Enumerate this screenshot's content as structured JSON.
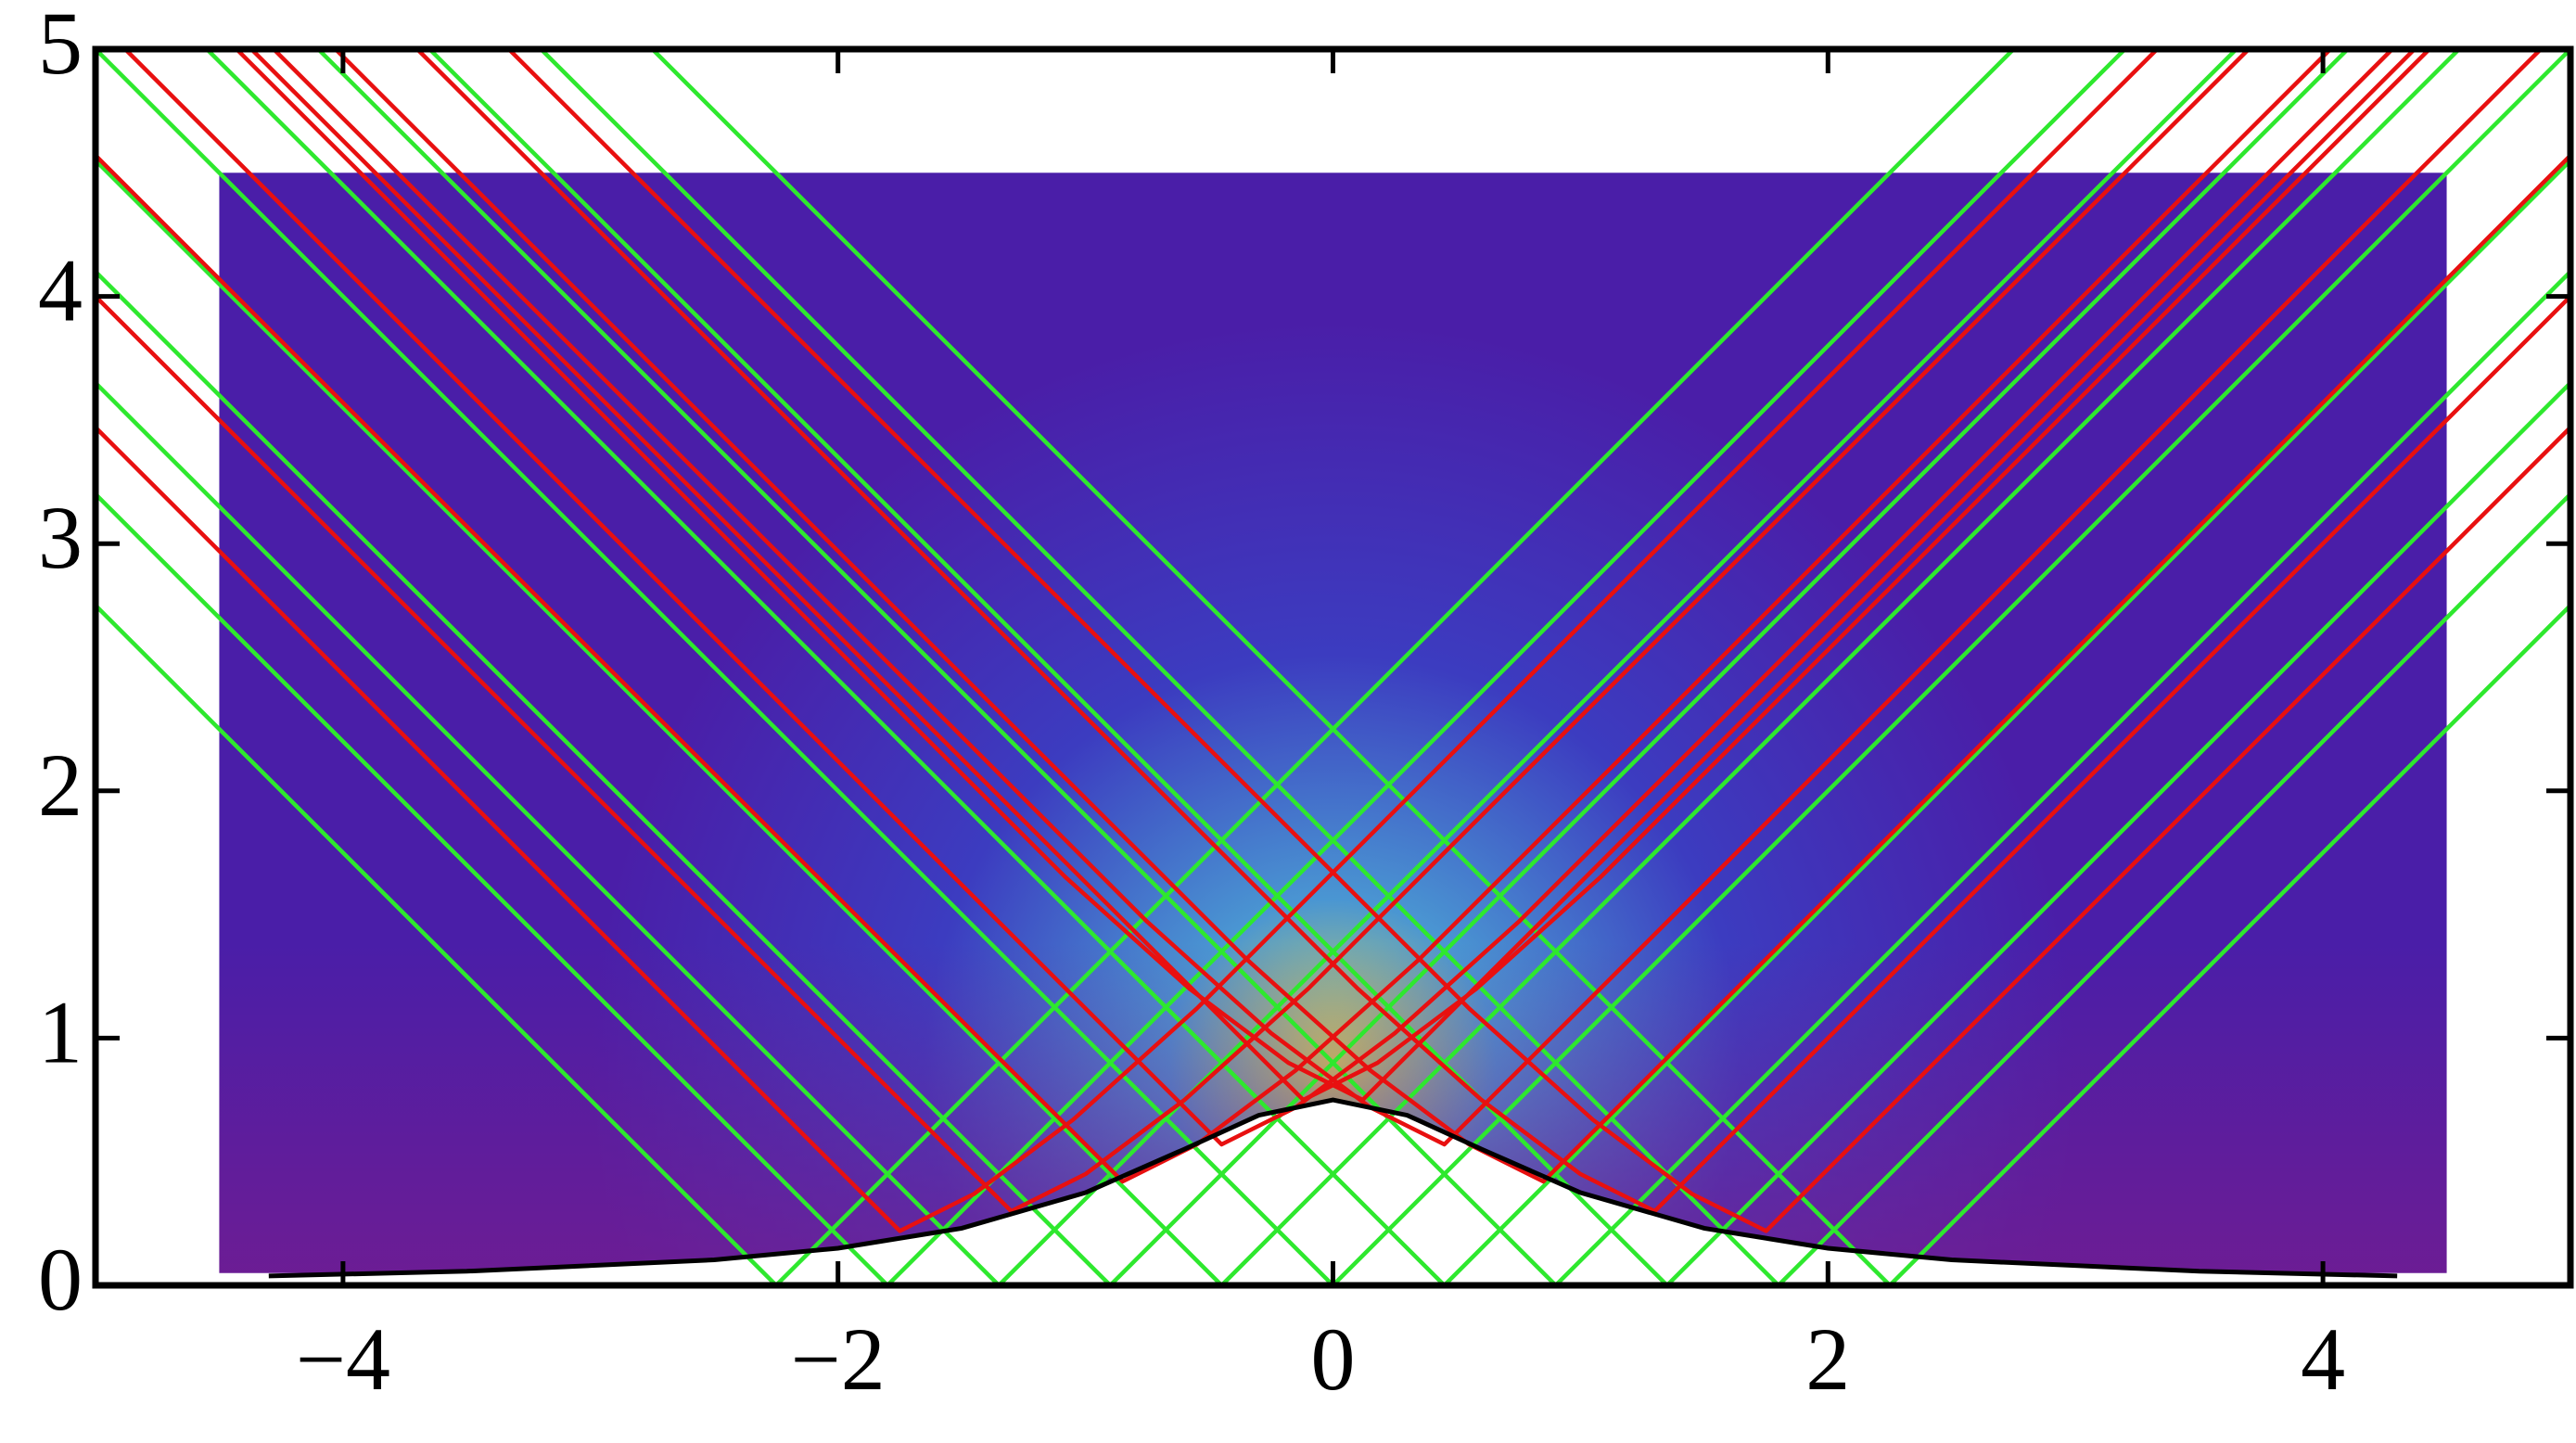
{
  "chart_data": {
    "type": "line",
    "xlim": [
      -5,
      5
    ],
    "ylim": [
      0,
      5
    ],
    "xticks": [
      {
        "value": -4,
        "label": "−4"
      },
      {
        "value": -2,
        "label": "−2"
      },
      0,
      2,
      4
    ],
    "yticks": [
      0,
      1,
      2,
      3,
      4,
      5
    ],
    "density": {
      "xlim": [
        -4.5,
        4.5
      ],
      "ylim": [
        0.05,
        4.5
      ],
      "center": [
        0,
        0.9
      ],
      "colors": [
        "#d6d65a",
        "#4a96d2",
        "#3c3cc0",
        "#4a1ea8",
        "#7a1c8c"
      ]
    },
    "curve": {
      "color": "#000000",
      "x": [
        -4.3,
        -3.5,
        -2.5,
        -2,
        -1.5,
        -1,
        -0.6,
        -0.3,
        0,
        0.3,
        0.6,
        1,
        1.5,
        2,
        2.5,
        3.5,
        4.3
      ],
      "y": [
        0.038,
        0.057,
        0.103,
        0.15,
        0.231,
        0.375,
        0.551,
        0.688,
        0.75,
        0.688,
        0.551,
        0.375,
        0.231,
        0.15,
        0.103,
        0.057,
        0.038
      ]
    },
    "green_rays": {
      "color": "#2ee82e",
      "lines": [
        {
          "x": [
            -2.25,
            2.75
          ],
          "y": [
            0,
            5
          ]
        },
        {
          "x": [
            -1.8,
            3.2
          ],
          "y": [
            0,
            5
          ]
        },
        {
          "x": [
            -1.35,
            3.65
          ],
          "y": [
            0,
            5
          ]
        },
        {
          "x": [
            -0.9,
            4.1
          ],
          "y": [
            0,
            5
          ]
        },
        {
          "x": [
            -0.45,
            4.55
          ],
          "y": [
            0,
            5
          ]
        },
        {
          "x": [
            0,
            5
          ],
          "y": [
            0,
            5
          ]
        },
        {
          "x": [
            0.45,
            5
          ],
          "y": [
            0,
            4.55
          ]
        },
        {
          "x": [
            0.9,
            5
          ],
          "y": [
            0,
            4.1
          ]
        },
        {
          "x": [
            1.35,
            5
          ],
          "y": [
            0,
            3.65
          ]
        },
        {
          "x": [
            1.8,
            5
          ],
          "y": [
            0,
            3.2
          ]
        },
        {
          "x": [
            2.25,
            5
          ],
          "y": [
            0,
            2.75
          ]
        },
        {
          "x": [
            2.25,
            -2.75
          ],
          "y": [
            0,
            5
          ]
        },
        {
          "x": [
            1.8,
            -3.2
          ],
          "y": [
            0,
            5
          ]
        },
        {
          "x": [
            1.35,
            -3.65
          ],
          "y": [
            0,
            5
          ]
        },
        {
          "x": [
            0.9,
            -4.1
          ],
          "y": [
            0,
            5
          ]
        },
        {
          "x": [
            0.45,
            -4.55
          ],
          "y": [
            0,
            5
          ]
        },
        {
          "x": [
            0,
            -5
          ],
          "y": [
            0,
            5
          ]
        },
        {
          "x": [
            -0.45,
            -5
          ],
          "y": [
            0,
            4.55
          ]
        },
        {
          "x": [
            -0.9,
            -5
          ],
          "y": [
            0,
            4.1
          ]
        },
        {
          "x": [
            -1.35,
            -5
          ],
          "y": [
            0,
            3.65
          ]
        },
        {
          "x": [
            -1.8,
            -5
          ],
          "y": [
            0,
            3.2
          ]
        },
        {
          "x": [
            -2.25,
            -5
          ],
          "y": [
            0,
            2.75
          ]
        }
      ]
    },
    "red_rays": {
      "color": "#e81010",
      "lines": [
        {
          "x": [
            -5,
            -1.75,
            -1.45,
            -1.05,
            -0.55,
            3.33
          ],
          "y": [
            3.47,
            0.22,
            0.37,
            0.67,
            1.12,
            5
          ]
        },
        {
          "x": [
            -5,
            -1.3,
            -1.0,
            -0.6,
            -0.1,
            3.7
          ],
          "y": [
            4.0,
            0.3,
            0.45,
            0.75,
            1.2,
            5
          ]
        },
        {
          "x": [
            -5,
            -0.85,
            -0.55,
            -0.15,
            0.35,
            4.03
          ],
          "y": [
            4.57,
            0.42,
            0.57,
            0.87,
            1.32,
            5
          ]
        },
        {
          "x": [
            -4.88,
            -0.45,
            -0.15,
            0.25,
            0.75,
            4.28
          ],
          "y": [
            5,
            0.57,
            0.72,
            1.02,
            1.47,
            5
          ]
        },
        {
          "x": [
            -4.37,
            -0.12,
            0.18,
            0.58,
            1.08,
            4.43
          ],
          "y": [
            5,
            0.75,
            0.9,
            1.2,
            1.65,
            5
          ]
        },
        {
          "x": [
            4.37,
            0.12,
            -0.18,
            -0.58,
            -1.08,
            -4.43
          ],
          "y": [
            5,
            0.75,
            0.9,
            1.2,
            1.65,
            5
          ]
        },
        {
          "x": [
            4.88,
            0.45,
            0.15,
            -0.25,
            -0.75,
            -4.28
          ],
          "y": [
            5,
            0.57,
            0.72,
            1.02,
            1.47,
            5
          ]
        },
        {
          "x": [
            5,
            0.85,
            0.55,
            0.15,
            -0.35,
            -4.03
          ],
          "y": [
            4.57,
            0.42,
            0.57,
            0.87,
            1.32,
            5
          ]
        },
        {
          "x": [
            5,
            1.3,
            1.0,
            0.6,
            0.1,
            -3.7
          ],
          "y": [
            4.0,
            0.3,
            0.45,
            0.75,
            1.2,
            5
          ]
        },
        {
          "x": [
            5,
            1.75,
            1.45,
            1.05,
            0.55,
            -3.33
          ],
          "y": [
            3.47,
            0.22,
            0.37,
            0.67,
            1.12,
            5
          ]
        }
      ]
    }
  }
}
